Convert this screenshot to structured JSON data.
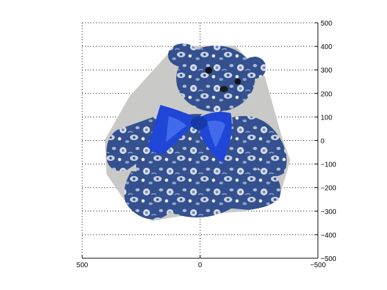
{
  "figure": {
    "subject": "teddy-bear",
    "colors": {
      "axis": "#000000",
      "grid": "#000000",
      "backdrop": "#c9c9c7",
      "fabric_dark": "#2e4a86",
      "fabric_mid": "#4a66a4",
      "flower_light": "#d9e0ea",
      "ribbon": "#1f46d6",
      "ribbon_highlight": "#4b74f0",
      "eye": "#121212"
    },
    "x_ticks": [
      "500",
      "0",
      "−500"
    ],
    "y_ticks": [
      "500",
      "400",
      "300",
      "200",
      "100",
      "0",
      "−100",
      "−200",
      "−300",
      "−400",
      "−500"
    ]
  }
}
